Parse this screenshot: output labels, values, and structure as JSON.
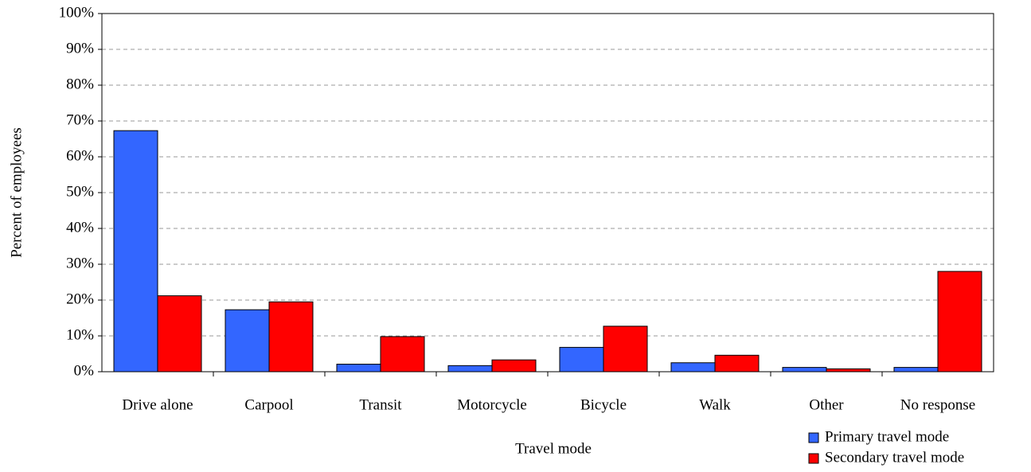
{
  "chart_data": {
    "type": "bar",
    "xlabel": "Travel mode",
    "ylabel": "Percent of employees",
    "categories": [
      "Drive alone",
      "Carpool",
      "Transit",
      "Motorcycle",
      "Bicycle",
      "Walk",
      "Other",
      "No response"
    ],
    "series": [
      {
        "name": "Primary travel mode",
        "color": "#3366ff",
        "values": [
          67.3,
          17.3,
          2.1,
          1.7,
          6.8,
          2.5,
          1.2,
          1.2
        ]
      },
      {
        "name": "Secondary travel mode",
        "color": "#ff0000",
        "values": [
          21.2,
          19.5,
          9.8,
          3.3,
          12.7,
          4.6,
          0.8,
          28.0
        ]
      }
    ],
    "ylim": [
      0,
      100
    ],
    "yticks": [
      {
        "value": 0,
        "label": "0%"
      },
      {
        "value": 10,
        "label": "10%"
      },
      {
        "value": 20,
        "label": "20%"
      },
      {
        "value": 30,
        "label": "30%"
      },
      {
        "value": 40,
        "label": "40%"
      },
      {
        "value": 50,
        "label": "50%"
      },
      {
        "value": 60,
        "label": "60%"
      },
      {
        "value": 70,
        "label": "70%"
      },
      {
        "value": 80,
        "label": "80%"
      },
      {
        "value": 90,
        "label": "90%"
      },
      {
        "value": 100,
        "label": "100%"
      }
    ],
    "grid": true,
    "legend": "bottom-right"
  }
}
